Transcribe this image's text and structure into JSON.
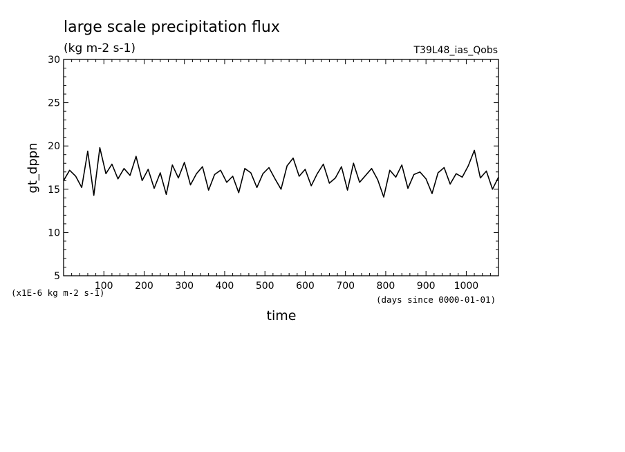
{
  "chart_data": {
    "type": "line",
    "title": "large scale precipitation flux",
    "subtitle": "(kg m-2 s-1)",
    "run_label": "T39L48_ias_Qobs",
    "xlabel": "time",
    "ylabel": "gt_dppn",
    "x_unit": "(days since 0000-01-01)",
    "y_unit": "(x1E-6 kg m-2 s-1)",
    "xlim": [
      0,
      1080
    ],
    "ylim": [
      5,
      30
    ],
    "x_ticks": [
      100,
      200,
      300,
      400,
      500,
      600,
      700,
      800,
      900,
      1000
    ],
    "y_ticks": [
      5,
      10,
      15,
      20,
      25,
      30
    ],
    "grid": false,
    "series": [
      {
        "color": "#000000",
        "x": [
          0,
          15,
          30,
          45,
          60,
          75,
          90,
          105,
          120,
          135,
          150,
          165,
          180,
          195,
          210,
          225,
          240,
          255,
          270,
          285,
          300,
          315,
          330,
          345,
          360,
          375,
          390,
          405,
          420,
          435,
          450,
          465,
          480,
          495,
          510,
          525,
          540,
          555,
          570,
          585,
          600,
          615,
          630,
          645,
          660,
          675,
          690,
          705,
          720,
          735,
          750,
          765,
          780,
          795,
          810,
          825,
          840,
          855,
          870,
          885,
          900,
          915,
          930,
          945,
          960,
          975,
          990,
          1005,
          1020,
          1035,
          1050,
          1065,
          1080
        ],
        "values": [
          16.0,
          17.2,
          16.5,
          15.2,
          19.4,
          14.3,
          19.8,
          16.8,
          17.9,
          16.2,
          17.4,
          16.6,
          18.8,
          16.0,
          17.3,
          15.1,
          16.9,
          14.4,
          17.8,
          16.3,
          18.1,
          15.5,
          16.8,
          17.6,
          14.9,
          16.7,
          17.2,
          15.8,
          16.5,
          14.6,
          17.4,
          16.9,
          15.2,
          16.8,
          17.5,
          16.2,
          15.0,
          17.7,
          18.6,
          16.5,
          17.3,
          15.4,
          16.8,
          17.9,
          15.7,
          16.3,
          17.6,
          14.9,
          18.0,
          15.8,
          16.6,
          17.4,
          16.1,
          14.1,
          17.2,
          16.4,
          17.8,
          15.1,
          16.7,
          17.0,
          16.2,
          14.5,
          16.9,
          17.5,
          15.6,
          16.8,
          16.4,
          17.7,
          19.5,
          16.3,
          17.1,
          15.0,
          16.4
        ]
      }
    ]
  }
}
